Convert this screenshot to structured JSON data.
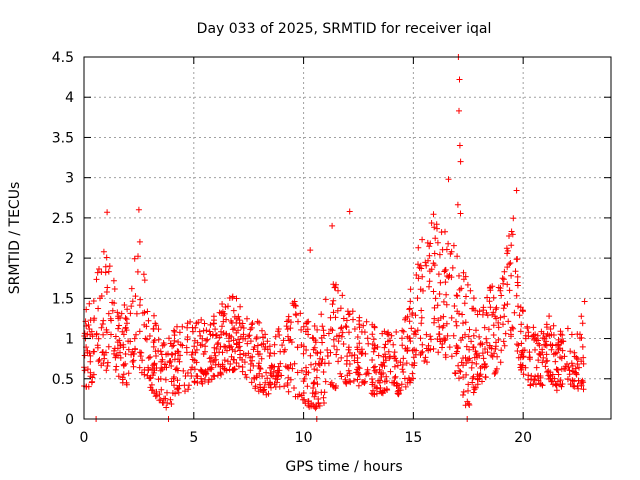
{
  "chart_data": {
    "type": "scatter",
    "title": "Day 033 of 2025, SRMTID for receiver iqal",
    "xlabel": "GPS time / hours",
    "ylabel": "SRMTID / TECUs",
    "xlim": [
      0,
      24
    ],
    "ylim": [
      0,
      4.5
    ],
    "x_ticks": [
      0,
      5,
      10,
      15,
      20
    ],
    "x_tick_labels": [
      "0",
      "5",
      "10",
      "15",
      "20"
    ],
    "y_ticks": [
      0,
      0.5,
      1,
      1.5,
      2,
      2.5,
      3,
      3.5,
      4,
      4.5
    ],
    "y_tick_labels": [
      "0",
      "0.5",
      "1",
      "1.5",
      "2",
      "2.5",
      "3",
      "3.5",
      "4",
      "4.5"
    ],
    "grid": true,
    "marker": "+",
    "series": [
      {
        "name": "SRMTID",
        "color": "#ff0000",
        "envelope": [
          [
            0.0,
            0.4,
            1.3
          ],
          [
            0.3,
            0.4,
            1.5
          ],
          [
            0.6,
            0.5,
            1.8
          ],
          [
            0.9,
            0.6,
            2.2
          ],
          [
            1.1,
            0.6,
            2.5
          ],
          [
            1.5,
            0.5,
            1.4
          ],
          [
            2.0,
            0.4,
            1.5
          ],
          [
            2.5,
            0.6,
            2.5
          ],
          [
            2.8,
            0.5,
            1.8
          ],
          [
            3.2,
            0.3,
            1.3
          ],
          [
            3.8,
            0.1,
            1.0
          ],
          [
            4.3,
            0.3,
            1.2
          ],
          [
            5.0,
            0.4,
            1.3
          ],
          [
            5.5,
            0.4,
            1.2
          ],
          [
            6.0,
            0.5,
            1.3
          ],
          [
            6.5,
            0.6,
            1.6
          ],
          [
            7.0,
            0.6,
            1.5
          ],
          [
            7.5,
            0.5,
            1.3
          ],
          [
            8.0,
            0.3,
            1.2
          ],
          [
            8.5,
            0.3,
            1.0
          ],
          [
            9.0,
            0.4,
            1.2
          ],
          [
            9.5,
            0.3,
            1.5
          ],
          [
            10.0,
            0.2,
            1.3
          ],
          [
            10.5,
            0.1,
            1.2
          ],
          [
            11.0,
            0.2,
            1.5
          ],
          [
            11.5,
            0.4,
            1.8
          ],
          [
            12.0,
            0.4,
            1.4
          ],
          [
            12.5,
            0.4,
            1.3
          ],
          [
            13.0,
            0.3,
            1.2
          ],
          [
            13.5,
            0.3,
            1.1
          ],
          [
            14.0,
            0.3,
            1.1
          ],
          [
            14.5,
            0.3,
            1.1
          ],
          [
            14.8,
            0.4,
            1.5
          ],
          [
            15.2,
            0.6,
            2.3
          ],
          [
            15.6,
            0.7,
            2.4
          ],
          [
            16.0,
            0.8,
            2.6
          ],
          [
            16.4,
            0.8,
            2.5
          ],
          [
            16.8,
            0.6,
            2.3
          ],
          [
            17.1,
            0.5,
            2.8
          ],
          [
            17.4,
            0.1,
            1.8
          ],
          [
            17.8,
            0.3,
            1.5
          ],
          [
            18.2,
            0.5,
            1.6
          ],
          [
            18.6,
            0.5,
            1.7
          ],
          [
            19.0,
            0.7,
            1.9
          ],
          [
            19.4,
            1.0,
            2.5
          ],
          [
            19.6,
            1.0,
            2.6
          ],
          [
            19.9,
            0.6,
            1.4
          ],
          [
            20.3,
            0.4,
            1.2
          ],
          [
            20.8,
            0.4,
            1.1
          ],
          [
            21.2,
            0.5,
            1.3
          ],
          [
            21.6,
            0.3,
            1.0
          ],
          [
            22.0,
            0.5,
            1.4
          ],
          [
            22.4,
            0.3,
            1.0
          ],
          [
            22.8,
            0.3,
            1.5
          ]
        ],
        "notable_points": [
          {
            "x": 17.05,
            "y": 4.5
          },
          {
            "x": 17.1,
            "y": 4.22
          },
          {
            "x": 17.08,
            "y": 3.83
          },
          {
            "x": 17.12,
            "y": 3.4
          },
          {
            "x": 17.15,
            "y": 3.2
          },
          {
            "x": 16.6,
            "y": 2.98
          },
          {
            "x": 19.7,
            "y": 2.84
          },
          {
            "x": 2.5,
            "y": 2.6
          },
          {
            "x": 1.05,
            "y": 2.57
          },
          {
            "x": 12.1,
            "y": 2.58
          },
          {
            "x": 10.3,
            "y": 2.1
          },
          {
            "x": 11.3,
            "y": 2.4
          },
          {
            "x": 0.55,
            "y": 0.0
          },
          {
            "x": 3.85,
            "y": 0.0
          },
          {
            "x": 10.6,
            "y": 0.0
          },
          {
            "x": 17.45,
            "y": 0.0
          }
        ]
      }
    ]
  }
}
